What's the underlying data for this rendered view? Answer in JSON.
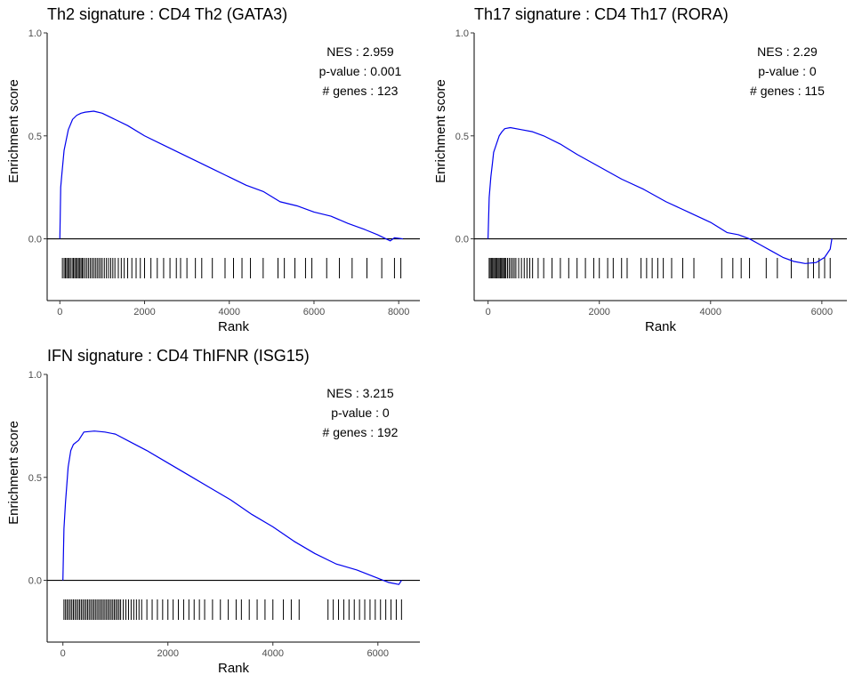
{
  "chart_data": [
    {
      "type": "line",
      "title": "Th2 signature : CD4 Th2 (GATA3)",
      "xlabel": "Rank",
      "ylabel": "Enrichment score",
      "xlim": [
        -300,
        8500
      ],
      "ylim": [
        -0.3,
        1.0
      ],
      "x_ticks": [
        "0",
        "2000",
        "4000",
        "6000",
        "8000"
      ],
      "y_ticks": [
        "0.0",
        "0.5",
        "1.0"
      ],
      "stats": [
        "NES : 2.959",
        "p-value : 0.001",
        "# genes : 123"
      ],
      "line_color": "#0000ee",
      "series": [
        {
          "x": [
            0,
            20,
            50,
            100,
            150,
            200,
            300,
            400,
            500,
            600,
            800,
            1000,
            1300,
            1600,
            2000,
            2400,
            2800,
            3200,
            3600,
            4000,
            4400,
            4800,
            5200,
            5600,
            6000,
            6400,
            6800,
            7200,
            7500,
            7700,
            7800,
            7900,
            8100
          ],
          "y": [
            0.0,
            0.25,
            0.32,
            0.43,
            0.48,
            0.53,
            0.58,
            0.6,
            0.61,
            0.615,
            0.62,
            0.61,
            0.58,
            0.55,
            0.5,
            0.46,
            0.42,
            0.38,
            0.34,
            0.3,
            0.26,
            0.23,
            0.18,
            0.16,
            0.13,
            0.11,
            0.075,
            0.045,
            0.02,
            0.0,
            -0.01,
            0.005,
            0.0
          ]
        }
      ],
      "hits": [
        60,
        100,
        130,
        160,
        190,
        220,
        250,
        290,
        320,
        350,
        380,
        410,
        440,
        470,
        500,
        530,
        560,
        600,
        640,
        680,
        720,
        760,
        800,
        840,
        880,
        920,
        960,
        1000,
        1050,
        1100,
        1150,
        1200,
        1250,
        1300,
        1380,
        1450,
        1520,
        1600,
        1700,
        1800,
        1900,
        2000,
        2150,
        2300,
        2450,
        2600,
        2750,
        2850,
        3000,
        3200,
        3350,
        3600,
        3900,
        4100,
        4300,
        4500,
        4800,
        5150,
        5300,
        5550,
        5800,
        5950,
        6300,
        6600,
        6900,
        7250,
        7600,
        7900,
        8050
      ]
    },
    {
      "type": "line",
      "title": "Th17 signature : CD4 Th17 (RORA)",
      "xlabel": "Rank",
      "ylabel": "Enrichment score",
      "xlim": [
        -250,
        6450
      ],
      "ylim": [
        -0.3,
        1.0
      ],
      "x_ticks": [
        "0",
        "2000",
        "4000",
        "6000"
      ],
      "y_ticks": [
        "0.0",
        "0.5",
        "1.0"
      ],
      "stats": [
        "NES : 2.29",
        "p-value : 0",
        "# genes : 115"
      ],
      "line_color": "#0000ee",
      "series": [
        {
          "x": [
            0,
            20,
            50,
            80,
            100,
            150,
            200,
            250,
            300,
            400,
            600,
            800,
            1000,
            1300,
            1600,
            2000,
            2400,
            2800,
            3200,
            3600,
            4000,
            4300,
            4500,
            4700,
            4900,
            5100,
            5300,
            5500,
            5700,
            5900,
            6050,
            6150,
            6180
          ],
          "y": [
            0.0,
            0.2,
            0.3,
            0.37,
            0.42,
            0.46,
            0.5,
            0.52,
            0.535,
            0.54,
            0.53,
            0.52,
            0.5,
            0.46,
            0.41,
            0.35,
            0.29,
            0.24,
            0.18,
            0.13,
            0.08,
            0.03,
            0.02,
            0.0,
            -0.03,
            -0.06,
            -0.09,
            -0.11,
            -0.12,
            -0.115,
            -0.09,
            -0.05,
            0.0
          ]
        }
      ],
      "hits": [
        20,
        40,
        60,
        80,
        100,
        120,
        140,
        160,
        180,
        200,
        220,
        240,
        260,
        280,
        300,
        320,
        350,
        380,
        410,
        440,
        470,
        500,
        550,
        600,
        650,
        700,
        750,
        800,
        900,
        1000,
        1150,
        1300,
        1450,
        1600,
        1750,
        1900,
        2000,
        2150,
        2250,
        2400,
        2500,
        2750,
        2850,
        2950,
        3050,
        3150,
        3300,
        3500,
        3700,
        4200,
        4400,
        4550,
        4700,
        5000,
        5200,
        5450,
        5750,
        5850,
        5950,
        6050,
        6150
      ]
    },
    {
      "type": "line",
      "title": "IFN signature : CD4 ThIFNR (ISG15)",
      "xlabel": "Rank",
      "ylabel": "Enrichment score",
      "xlim": [
        -300,
        6800
      ],
      "ylim": [
        -0.3,
        1.0
      ],
      "x_ticks": [
        "0",
        "2000",
        "4000",
        "6000"
      ],
      "y_ticks": [
        "0.0",
        "0.5",
        "1.0"
      ],
      "stats": [
        "NES : 3.215",
        "p-value : 0",
        "# genes : 192"
      ],
      "line_color": "#0000ee",
      "series": [
        {
          "x": [
            0,
            20,
            50,
            100,
            150,
            200,
            300,
            400,
            600,
            800,
            1000,
            1300,
            1600,
            2000,
            2400,
            2800,
            3200,
            3600,
            4000,
            4400,
            4800,
            5200,
            5600,
            6000,
            6200,
            6300,
            6400,
            6450
          ],
          "y": [
            0.0,
            0.25,
            0.38,
            0.55,
            0.63,
            0.66,
            0.68,
            0.72,
            0.725,
            0.72,
            0.71,
            0.67,
            0.63,
            0.57,
            0.51,
            0.45,
            0.39,
            0.32,
            0.26,
            0.19,
            0.13,
            0.08,
            0.05,
            0.01,
            -0.01,
            -0.015,
            -0.02,
            0.0
          ]
        }
      ],
      "hits": [
        20,
        50,
        80,
        110,
        140,
        170,
        200,
        230,
        260,
        290,
        320,
        350,
        380,
        410,
        440,
        470,
        500,
        530,
        560,
        590,
        620,
        650,
        680,
        710,
        740,
        770,
        800,
        830,
        860,
        890,
        920,
        950,
        980,
        1010,
        1040,
        1070,
        1100,
        1150,
        1200,
        1250,
        1300,
        1350,
        1400,
        1450,
        1500,
        1600,
        1700,
        1800,
        1900,
        2000,
        2100,
        2200,
        2300,
        2400,
        2500,
        2600,
        2700,
        2850,
        3000,
        3150,
        3300,
        3400,
        3550,
        3700,
        3850,
        4000,
        4200,
        4350,
        4500,
        5050,
        5150,
        5250,
        5350,
        5450,
        5550,
        5650,
        5750,
        5850,
        5950,
        6050,
        6150,
        6250,
        6350,
        6450
      ]
    }
  ]
}
